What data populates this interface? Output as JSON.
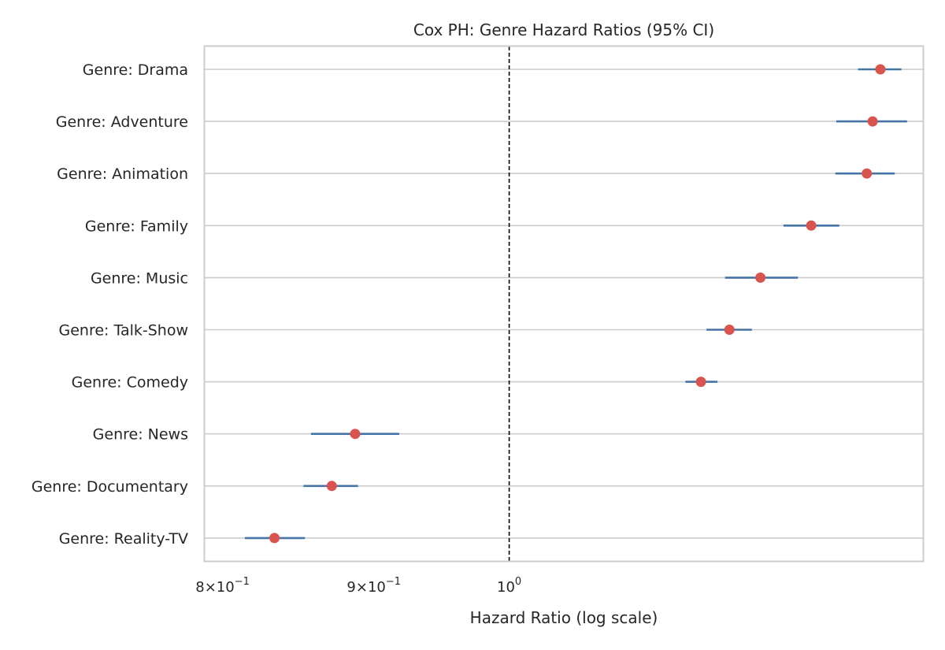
{
  "chart_data": {
    "type": "forest",
    "title": "Cox PH: Genre Hazard Ratios (95% CI)",
    "xlabel": "Hazard Ratio (log scale)",
    "ylabel": "",
    "x_scale": "log",
    "xlim": [
      0.789,
      1.38
    ],
    "reference_line": 1.0,
    "xticks": [
      {
        "value": 0.8,
        "mantissa": "8",
        "exponent": "−1"
      },
      {
        "value": 0.9,
        "mantissa": "9",
        "exponent": "−1"
      },
      {
        "value": 1.0,
        "mantissa": "",
        "exponent": "0"
      }
    ],
    "grid": "horizontal",
    "categories": [
      "Genre: Drama",
      "Genre: Adventure",
      "Genre: Animation",
      "Genre: Family",
      "Genre: Music",
      "Genre: Talk-Show",
      "Genre: Comedy",
      "Genre: News",
      "Genre: Documentary",
      "Genre: Reality-TV"
    ],
    "hr": [
      1.335,
      1.327,
      1.321,
      1.265,
      1.216,
      1.187,
      1.161,
      0.887,
      0.871,
      0.833
    ],
    "ci_lower": [
      1.312,
      1.29,
      1.289,
      1.238,
      1.183,
      1.166,
      1.147,
      0.857,
      0.852,
      0.814
    ],
    "ci_upper": [
      1.357,
      1.363,
      1.35,
      1.293,
      1.252,
      1.208,
      1.176,
      0.918,
      0.889,
      0.853
    ],
    "colors": {
      "point": "#d9534f",
      "ci": "#4674a5",
      "grid": "#cccccc",
      "axes": "#cccccc",
      "reference": "#000000"
    }
  }
}
